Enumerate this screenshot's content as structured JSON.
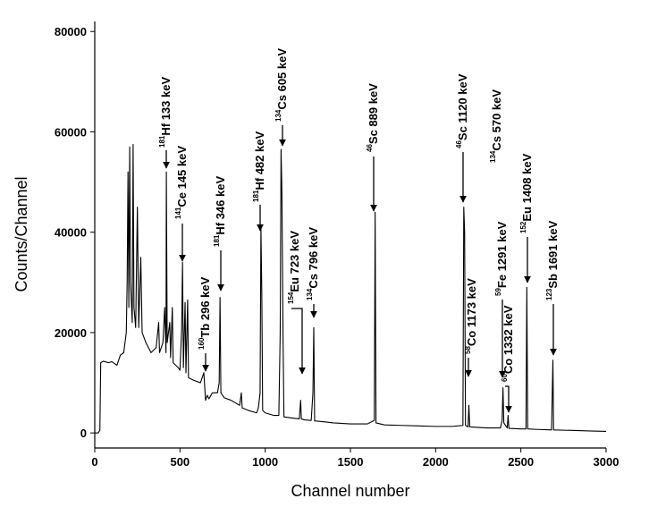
{
  "chart_data": {
    "type": "line",
    "xlabel": "Channel number",
    "ylabel": "Counts/Channel",
    "xlim": [
      0,
      3000
    ],
    "xticks": [
      0,
      500,
      1000,
      1500,
      2000,
      2500,
      3000
    ],
    "ylim": [
      -3000,
      82000
    ],
    "yticks": [
      0,
      20000,
      40000,
      60000,
      80000
    ],
    "grid": false,
    "series": [
      {
        "color": "#000000",
        "x": [
          0,
          20,
          30,
          35,
          50,
          80,
          100,
          130,
          150,
          170,
          185,
          190,
          195,
          200,
          205,
          210,
          220,
          225,
          230,
          240,
          250,
          258,
          270,
          278,
          300,
          330,
          360,
          375,
          380,
          400,
          410,
          418,
          420,
          425,
          440,
          445,
          455,
          460,
          490,
          500,
          510,
          515,
          520,
          530,
          535,
          545,
          550,
          580,
          620,
          640,
          650,
          660,
          670,
          690,
          720,
          730,
          735,
          740,
          760,
          800,
          850,
          860,
          865,
          900,
          950,
          960,
          970,
          975,
          980,
          985,
          1000,
          1050,
          1080,
          1088,
          1093,
          1098,
          1105,
          1110,
          1150,
          1200,
          1208,
          1212,
          1230,
          1270,
          1280,
          1285,
          1290,
          1350,
          1400,
          1500,
          1600,
          1640,
          1645,
          1650,
          1700,
          1800,
          1900,
          2000,
          2100,
          2160,
          2165,
          2170,
          2175,
          2190,
          2195,
          2200,
          2300,
          2380,
          2390,
          2395,
          2400,
          2420,
          2425,
          2430,
          2500,
          2530,
          2535,
          2540,
          2600,
          2680,
          2688,
          2692,
          2800,
          2900,
          3000
        ],
        "values": [
          0,
          0,
          500,
          14000,
          14300,
          14000,
          14200,
          13500,
          15500,
          16000,
          20000,
          30000,
          52000,
          25000,
          57000,
          30000,
          22000,
          57500,
          25000,
          21000,
          45000,
          21000,
          35000,
          20000,
          18000,
          16000,
          17000,
          22000,
          16000,
          18000,
          25000,
          16000,
          52000,
          18000,
          22000,
          15000,
          25000,
          14000,
          13000,
          12500,
          21000,
          34000,
          13000,
          26000,
          12000,
          26500,
          11000,
          10500,
          10000,
          12000,
          6500,
          7500,
          6800,
          8000,
          8000,
          10000,
          27000,
          8000,
          7000,
          6500,
          5500,
          8000,
          5000,
          4500,
          4000,
          5000,
          8000,
          41000,
          28000,
          4500,
          4000,
          3500,
          3500,
          20000,
          56500,
          48000,
          18000,
          3200,
          3000,
          2800,
          6500,
          2800,
          2600,
          2500,
          8000,
          21000,
          2400,
          2200,
          2000,
          1800,
          1800,
          2500,
          44000,
          2000,
          1600,
          1500,
          1400,
          1300,
          1300,
          1500,
          45000,
          40000,
          1500,
          1200,
          5500,
          1200,
          1000,
          1000,
          2500,
          9000,
          2000,
          1000,
          3500,
          900,
          800,
          800,
          29000,
          800,
          700,
          600,
          14500,
          600,
          500,
          400,
          300
        ]
      }
    ],
    "annotations": [
      {
        "mass": "181",
        "text": "Hf 133 keV"
      },
      {
        "mass": "141",
        "text": "Ce 145 keV"
      },
      {
        "mass": "181",
        "text": "Hf 346 keV"
      },
      {
        "mass": "160",
        "text": "Tb 296 keV"
      },
      {
        "mass": "181",
        "text": "Hf 482 keV"
      },
      {
        "mass": "134",
        "text": "Cs 605 keV"
      },
      {
        "mass": "154",
        "text": "Eu 723 keV"
      },
      {
        "mass": "134",
        "text": "Cs 796 keV"
      },
      {
        "mass": "46",
        "text": "Sc 889 keV"
      },
      {
        "mass": "46",
        "text": "Sc 1120 keV"
      },
      {
        "mass": "58",
        "text": "Co 1173 keV"
      },
      {
        "mass": "134",
        "text": "Cs 570 keV"
      },
      {
        "mass": "59",
        "text": "Fe 1291 keV"
      },
      {
        "mass": "60",
        "text": "Co 1332 keV"
      },
      {
        "mass": "152",
        "text": "Eu 1408 keV"
      },
      {
        "mass": "123",
        "text": "Sb 1691 keV"
      }
    ]
  }
}
